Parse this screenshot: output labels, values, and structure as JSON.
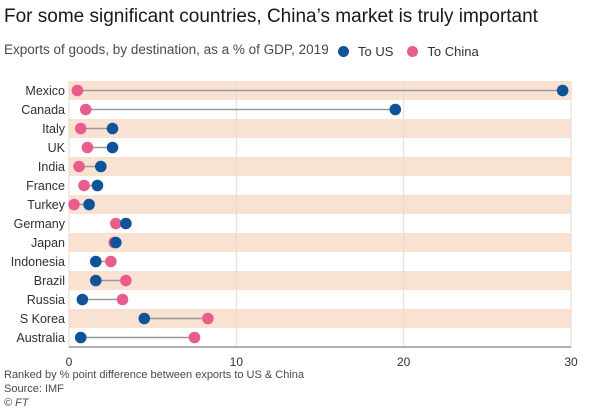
{
  "colors": {
    "us": "#0f5499",
    "china": "#e95d8c",
    "band": "#f9e2d1",
    "connector": "#999999",
    "text": "#33302e",
    "axis": "#66605c"
  },
  "legend": {
    "us_label": "To US",
    "china_label": "To China"
  },
  "footer": {
    "note": "Ranked by % point difference between exports to US & China",
    "source": "Source: IMF",
    "credit": "© FT"
  },
  "chart_data": {
    "type": "dumbbell",
    "title": "For some significant countries, China’s market is truly important",
    "subtitle": "Exports of goods, by destination, as a % of GDP, 2019",
    "xlabel": "",
    "ylabel": "",
    "xlim": [
      0,
      30
    ],
    "xticks": [
      0,
      10,
      20,
      30
    ],
    "categories": [
      "Mexico",
      "Canada",
      "Italy",
      "UK",
      "India",
      "France",
      "Turkey",
      "Germany",
      "Japan",
      "Indonesia",
      "Brazil",
      "Russia",
      "S Korea",
      "Australia"
    ],
    "series": [
      {
        "name": "To US",
        "values": [
          29.5,
          19.5,
          2.6,
          2.6,
          1.9,
          1.7,
          1.2,
          3.4,
          2.8,
          1.6,
          1.6,
          0.8,
          4.5,
          0.7
        ]
      },
      {
        "name": "To China",
        "values": [
          0.5,
          1.0,
          0.7,
          1.1,
          0.6,
          0.9,
          0.3,
          2.8,
          2.7,
          2.5,
          3.4,
          3.2,
          8.3,
          7.5
        ]
      }
    ],
    "legend_position": "top-right",
    "grid": true
  }
}
